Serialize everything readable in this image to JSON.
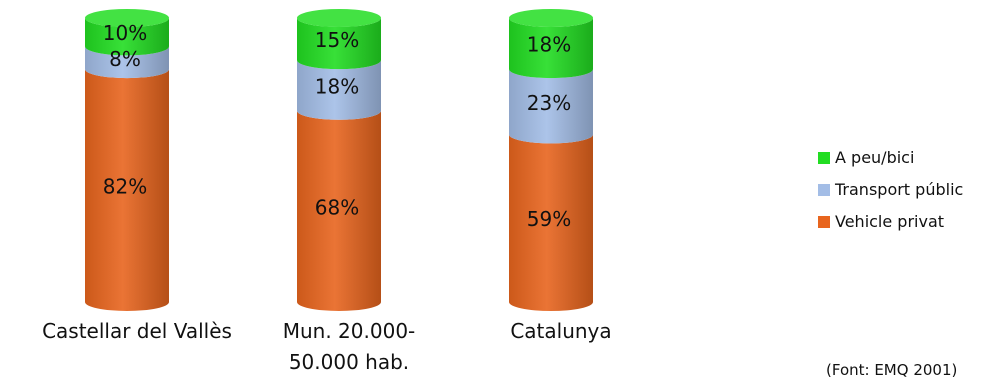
{
  "chart_data": {
    "type": "bar",
    "stacked": true,
    "style": "3d-cylinder",
    "orientation": "vertical",
    "categories": [
      "Castellar del Vallès",
      "Mun. 20.000-\n50.000 hab.",
      "Catalunya"
    ],
    "series": [
      {
        "name": "Vehicle privat",
        "values": [
          82,
          68,
          59
        ],
        "labels": [
          "82%",
          "68%",
          "59%"
        ],
        "color": "#e8651e"
      },
      {
        "name": "Transport públic",
        "values": [
          8,
          18,
          23
        ],
        "labels": [
          "8%",
          "18%",
          "23%"
        ],
        "color": "#a3bde6"
      },
      {
        "name": "A peu/bici",
        "values": [
          10,
          15,
          18
        ],
        "labels": [
          "10%",
          "15%",
          "18%"
        ],
        "color": "#22dd22"
      }
    ],
    "legend_order": [
      "A peu/bici",
      "Transport públic",
      "Vehicle privat"
    ],
    "legend_position": "right",
    "ylim": [
      0,
      100
    ],
    "source_note": "(Font: EMQ 2001)"
  }
}
